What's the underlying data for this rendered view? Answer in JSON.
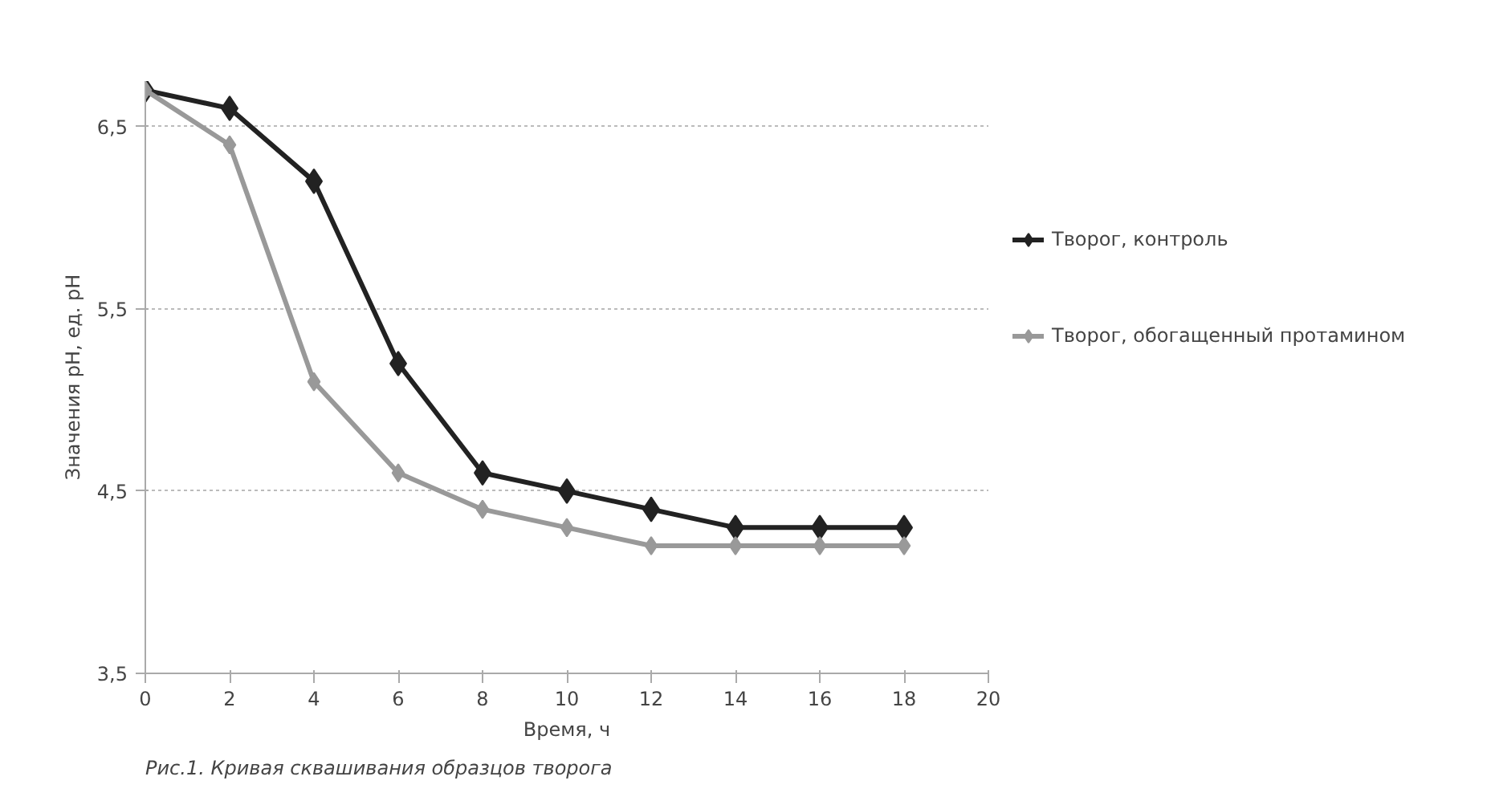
{
  "chart_data": {
    "type": "line",
    "xlabel": "Время, ч",
    "ylabel": "Значения рН, ед. рН",
    "x": [
      0,
      2,
      4,
      6,
      8,
      10,
      12,
      14,
      16,
      18
    ],
    "series": [
      {
        "name": "Творог, контроль",
        "color": "#222222",
        "values": [
          6.7,
          6.6,
          6.2,
          5.2,
          4.6,
          4.5,
          4.4,
          4.3,
          4.3,
          4.3
        ]
      },
      {
        "name": "Творог, обогащенный протамином",
        "color": "#999999",
        "values": [
          6.7,
          6.4,
          5.1,
          4.6,
          4.4,
          4.3,
          4.2,
          4.2,
          4.2,
          4.2
        ]
      }
    ],
    "xlim": [
      0,
      20
    ],
    "xticks": [
      0,
      2,
      4,
      6,
      8,
      10,
      12,
      14,
      16,
      18,
      20
    ],
    "ylim": [
      3.5,
      6.75
    ],
    "yticks": [
      {
        "value": 3.5,
        "label": "3,5"
      },
      {
        "value": 4.5,
        "label": "4,5"
      },
      {
        "value": 5.5,
        "label": "5,5"
      },
      {
        "value": 6.5,
        "label": "6,5"
      }
    ],
    "grid": "y",
    "legend": "right",
    "marker": "diamond",
    "line_style": "solid",
    "annotations": [
      "Рис.1. Кривая сквашивания образцов творога"
    ]
  }
}
